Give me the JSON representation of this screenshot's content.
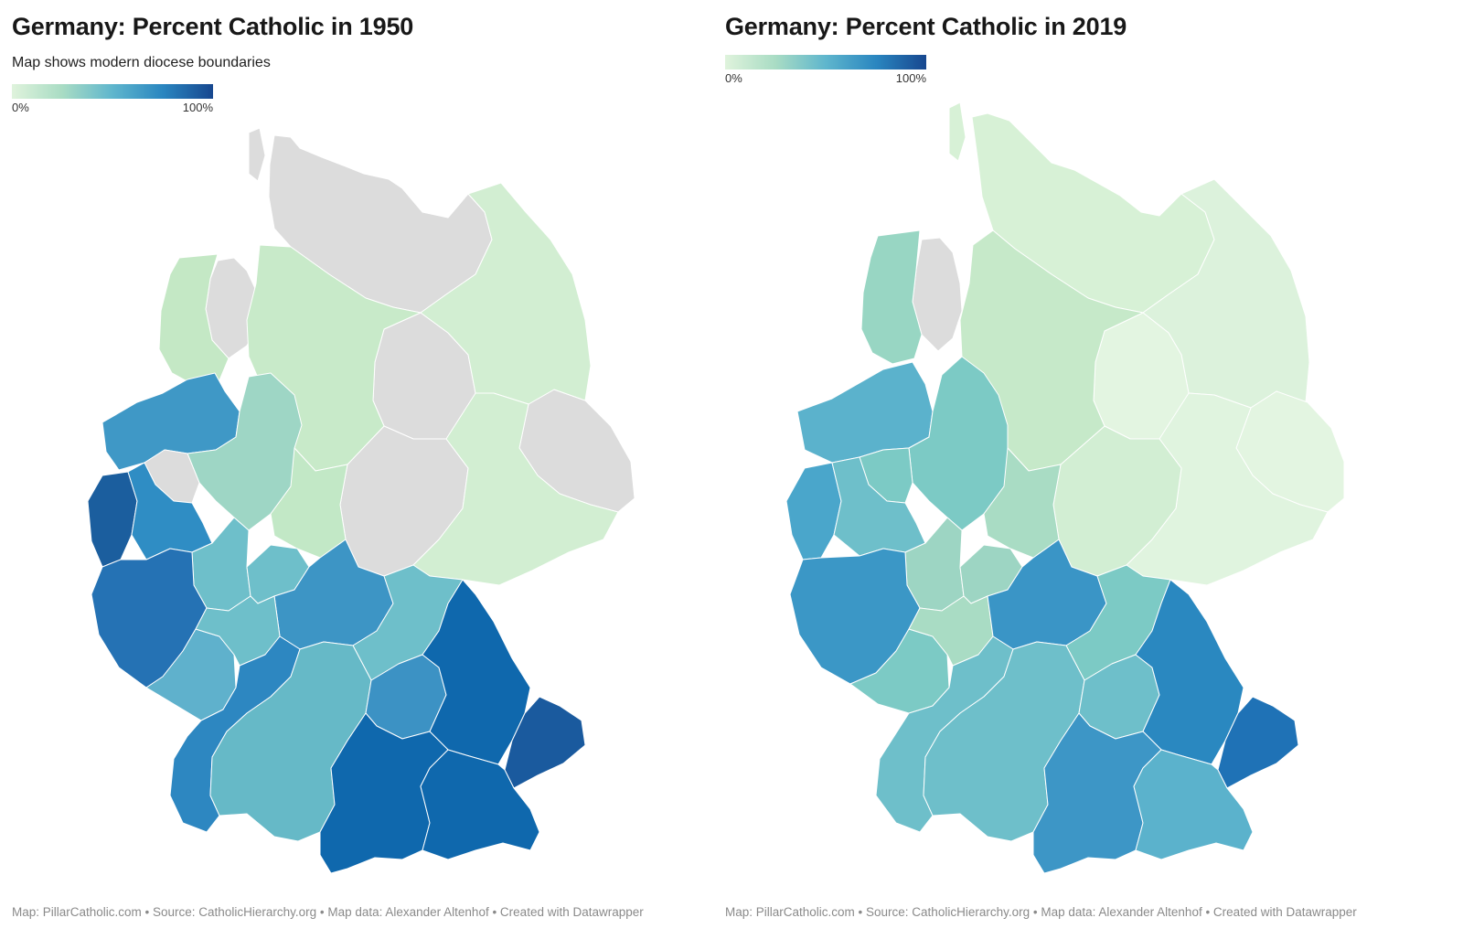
{
  "maps": [
    {
      "title": "Germany: Percent Catholic in 1950",
      "subtitle": "Map shows modern diocese boundaries",
      "legend": {
        "min_label": "0%",
        "max_label": "100%"
      },
      "footer": "Map: PillarCatholic.com • Source: CatholicHierarchy.org • Map data: Alexander Altenhof • Created with Datawrapper"
    },
    {
      "title": "Germany: Percent Catholic in 2019",
      "subtitle": "",
      "legend": {
        "min_label": "0%",
        "max_label": "100%"
      },
      "footer": "Map: PillarCatholic.com • Source: CatholicHierarchy.org • Map data: Alexander Altenhof • Created with Datawrapper"
    }
  ],
  "colors": {
    "no_data": "#dcdcdc",
    "scale": [
      "#dff3dc",
      "#a9dcc4",
      "#5fb6cd",
      "#2a86c0",
      "#17478f"
    ]
  }
}
